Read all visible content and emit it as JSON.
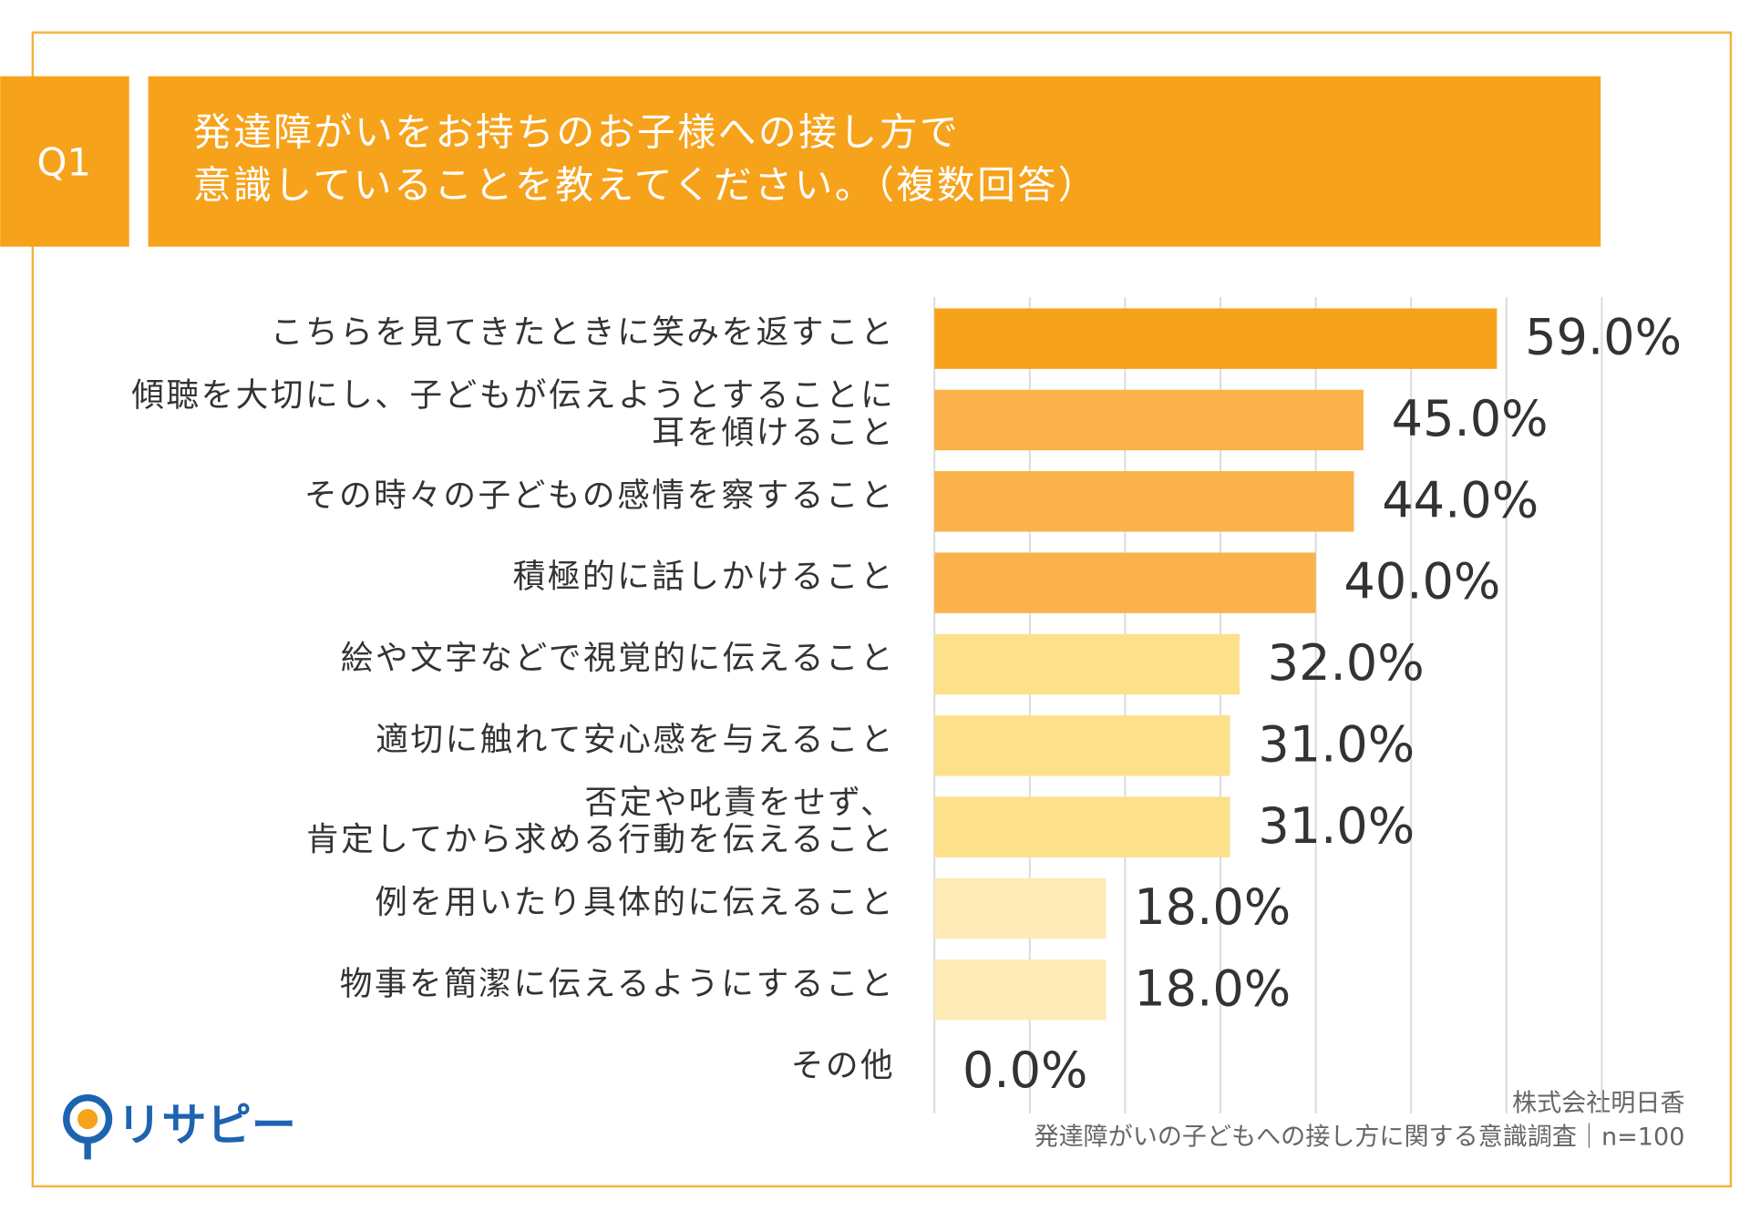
{
  "chart_data": {
    "type": "hbar",
    "badge": "Q1",
    "title": "発達障がいをお持ちのお子様への接し方で\n意識していることを教えてください。（複数回答）",
    "categories": [
      "こちらを見てきたときに笑みを返すこと",
      "傾聴を大切にし、子どもが伝えようとすることに\n耳を傾けること",
      "その時々の子どもの感情を察すること",
      "積極的に話しかけること",
      "絵や文字などで視覚的に伝えること",
      "適切に触れて安心感を与えること",
      "否定や叱責をせず、\n肯定してから求める行動を伝えること",
      "例を用いたり具体的に伝えること",
      "物事を簡潔に伝えるようにすること",
      "その他"
    ],
    "values": [
      59,
      45,
      44,
      40,
      32,
      31,
      31,
      18,
      18,
      0
    ],
    "value_labels": [
      "59.0%",
      "45.0%",
      "44.0%",
      "40.0%",
      "32.0%",
      "31.0%",
      "31.0%",
      "18.0%",
      "18.0%",
      "0.0%"
    ],
    "colors": [
      "#f7a21b",
      "#fbb24a",
      "#fbb24a",
      "#fbb24a",
      "#fde08a",
      "#fde08a",
      "#fde08a",
      "#feeab5",
      "#feeab5",
      "#feeab5"
    ],
    "xlim": [
      0,
      70
    ],
    "xticks": [
      0,
      10,
      20,
      30,
      40,
      50,
      60,
      70
    ],
    "grid": true,
    "source": [
      "株式会社明日香",
      "発達障がいの子どもへの接し方に関する意識調査｜n=100"
    ],
    "logo_text": "リサピー"
  }
}
